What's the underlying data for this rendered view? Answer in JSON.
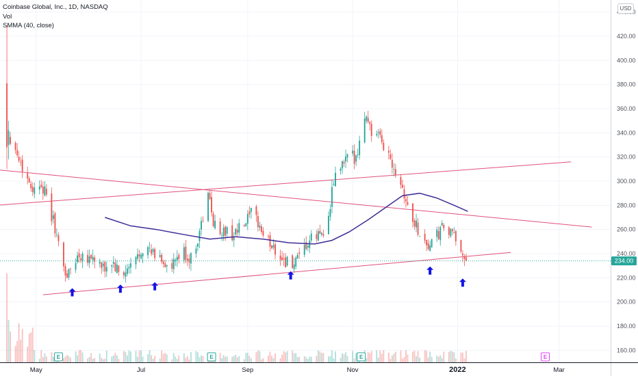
{
  "legend": {
    "symbol": "Coinbase Global, Inc., 1D, NASDAQ",
    "vol": "Vol",
    "smma": "SMMA (40, close)"
  },
  "currency": "USD",
  "colors": {
    "up": "#26a69a",
    "down": "#ef5350",
    "smma": "#3f2b96",
    "trendline": "#e04f7a",
    "arrow": "#1414e6",
    "price_tag": "#26a69a",
    "event_e": "#26a69a",
    "event_future": "#e040fb"
  },
  "chart_data": {
    "type": "candlestick",
    "y_range": [
      150,
      450
    ],
    "y_ticks": [
      160,
      180,
      200,
      220,
      240,
      260,
      280,
      300,
      320,
      340,
      360,
      380,
      400,
      420,
      440
    ],
    "x_range": [
      "2021-04-10",
      "2022-03-31"
    ],
    "x_ticks": [
      {
        "date": "2021-05-01",
        "label": "May"
      },
      {
        "date": "2021-07-01",
        "label": "Jul"
      },
      {
        "date": "2021-09-01",
        "label": "Sep"
      },
      {
        "date": "2021-11-01",
        "label": "Nov"
      },
      {
        "date": "2022-01-01",
        "label": "2022"
      },
      {
        "date": "2022-03-01",
        "label": "Mar"
      }
    ],
    "last_price": 234.0,
    "last_price_label": "234.00",
    "price_path": [
      [
        "2021-04-14",
        380
      ],
      [
        "2021-04-15",
        340
      ],
      [
        "2021-04-18",
        330
      ],
      [
        "2021-04-22",
        315
      ],
      [
        "2021-04-26",
        302
      ],
      [
        "2021-04-30",
        292
      ],
      [
        "2021-05-04",
        300
      ],
      [
        "2021-05-08",
        280
      ],
      [
        "2021-05-12",
        262
      ],
      [
        "2021-05-15",
        238
      ],
      [
        "2021-05-19",
        221
      ],
      [
        "2021-05-22",
        230
      ],
      [
        "2021-05-26",
        240
      ],
      [
        "2021-05-31",
        238
      ],
      [
        "2021-06-04",
        236
      ],
      [
        "2021-06-09",
        226
      ],
      [
        "2021-06-14",
        233
      ],
      [
        "2021-06-19",
        221
      ],
      [
        "2021-06-23",
        225
      ],
      [
        "2021-06-28",
        235
      ],
      [
        "2021-07-02",
        246
      ],
      [
        "2021-07-07",
        240
      ],
      [
        "2021-07-13",
        236
      ],
      [
        "2021-07-18",
        224
      ],
      [
        "2021-07-22",
        236
      ],
      [
        "2021-07-26",
        240
      ],
      [
        "2021-07-30",
        235
      ],
      [
        "2021-08-04",
        258
      ],
      [
        "2021-08-09",
        288
      ],
      [
        "2021-08-13",
        262
      ],
      [
        "2021-08-18",
        258
      ],
      [
        "2021-08-24",
        256
      ],
      [
        "2021-08-30",
        263
      ],
      [
        "2021-09-03",
        272
      ],
      [
        "2021-09-07",
        266
      ],
      [
        "2021-09-11",
        252
      ],
      [
        "2021-09-16",
        246
      ],
      [
        "2021-09-21",
        236
      ],
      [
        "2021-09-26",
        230
      ],
      [
        "2021-10-01",
        234
      ],
      [
        "2021-10-05",
        246
      ],
      [
        "2021-10-09",
        253
      ],
      [
        "2021-10-13",
        256
      ],
      [
        "2021-10-18",
        268
      ],
      [
        "2021-10-21",
        300
      ],
      [
        "2021-10-25",
        312
      ],
      [
        "2021-10-29",
        318
      ],
      [
        "2021-11-02",
        320
      ],
      [
        "2021-11-06",
        336
      ],
      [
        "2021-11-09",
        357
      ],
      [
        "2021-11-12",
        340
      ],
      [
        "2021-11-17",
        334
      ],
      [
        "2021-11-22",
        322
      ],
      [
        "2021-11-26",
        310
      ],
      [
        "2021-11-30",
        296
      ],
      [
        "2021-12-03",
        278
      ],
      [
        "2021-12-07",
        266
      ],
      [
        "2021-12-11",
        254
      ],
      [
        "2021-12-15",
        246
      ],
      [
        "2021-12-19",
        252
      ],
      [
        "2021-12-24",
        262
      ],
      [
        "2021-12-28",
        256
      ],
      [
        "2022-01-03",
        246
      ],
      [
        "2022-01-06",
        234
      ]
    ],
    "smma_line": [
      [
        "2021-06-10",
        270
      ],
      [
        "2021-06-25",
        263
      ],
      [
        "2021-07-10",
        260
      ],
      [
        "2021-07-25",
        256
      ],
      [
        "2021-08-10",
        252
      ],
      [
        "2021-08-25",
        254
      ],
      [
        "2021-09-10",
        252
      ],
      [
        "2021-09-25",
        249
      ],
      [
        "2021-10-10",
        248
      ],
      [
        "2021-10-20",
        251
      ],
      [
        "2021-10-30",
        258
      ],
      [
        "2021-11-10",
        268
      ],
      [
        "2021-11-20",
        278
      ],
      [
        "2021-11-30",
        288
      ],
      [
        "2021-12-10",
        290
      ],
      [
        "2021-12-20",
        286
      ],
      [
        "2021-12-30",
        280
      ],
      [
        "2022-01-07",
        275
      ]
    ],
    "trendlines": [
      {
        "from": [
          "2021-03-28",
          311
        ],
        "to": [
          "2022-03-20",
          262
        ]
      },
      {
        "from": [
          "2021-03-29",
          279
        ],
        "to": [
          "2022-03-08",
          316
        ]
      },
      {
        "from": [
          "2021-05-05",
          206
        ],
        "to": [
          "2022-02-01",
          241
        ]
      }
    ],
    "arrows": [
      [
        "2021-05-22",
        208
      ],
      [
        "2021-06-19",
        211
      ],
      [
        "2021-07-09",
        213
      ],
      [
        "2021-09-26",
        222
      ],
      [
        "2021-12-16",
        226
      ],
      [
        "2022-01-04",
        216
      ]
    ],
    "events": [
      {
        "date": "2021-05-14",
        "label": "E",
        "type": "past"
      },
      {
        "date": "2021-08-11",
        "label": "E",
        "type": "past"
      },
      {
        "date": "2021-11-06",
        "label": "E",
        "type": "past"
      },
      {
        "date": "2022-02-21",
        "label": "E",
        "type": "future"
      }
    ]
  }
}
